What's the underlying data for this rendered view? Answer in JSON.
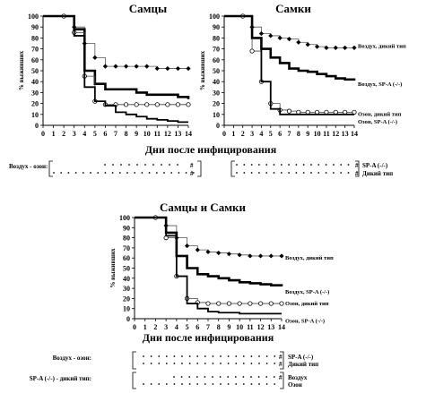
{
  "charts": [
    {
      "id": "males",
      "title": "Самцы",
      "ylabel": "% выживших",
      "xlim": [
        0,
        14
      ],
      "ylim": [
        0,
        100
      ],
      "xticks": [
        0,
        1,
        2,
        3,
        4,
        5,
        6,
        7,
        8,
        9,
        10,
        11,
        12,
        13,
        14
      ],
      "yticks": [
        0,
        10,
        20,
        30,
        40,
        50,
        60,
        70,
        80,
        90,
        100
      ],
      "series": [
        {
          "key": "air_wt",
          "style": "thin-diamond",
          "label": "",
          "x": [
            0,
            2,
            3,
            4,
            5,
            6,
            7,
            8,
            9,
            10,
            11,
            12,
            13,
            14
          ],
          "y": [
            100,
            100,
            90,
            75,
            62,
            54,
            54,
            54,
            54,
            54,
            52,
            52,
            52,
            52
          ]
        },
        {
          "key": "air_ko",
          "style": "thick",
          "label": "",
          "x": [
            0,
            2,
            3,
            4,
            5,
            6,
            7,
            8,
            9,
            10,
            11,
            12,
            13,
            14
          ],
          "y": [
            100,
            100,
            88,
            50,
            38,
            33,
            33,
            33,
            30,
            28,
            28,
            28,
            26,
            24
          ]
        },
        {
          "key": "oz_wt",
          "style": "thin-circle",
          "label": "",
          "x": [
            0,
            2,
            3,
            4,
            5,
            6,
            7,
            8,
            9,
            10,
            11,
            12,
            13,
            14
          ],
          "y": [
            100,
            100,
            85,
            45,
            22,
            19,
            19,
            19,
            19,
            19,
            19,
            19,
            19,
            19
          ]
        },
        {
          "key": "oz_ko",
          "style": "med",
          "label": "",
          "x": [
            0,
            2,
            3,
            4,
            5,
            6,
            7,
            8,
            9,
            10,
            11,
            12,
            13,
            14
          ],
          "y": [
            100,
            100,
            82,
            35,
            22,
            18,
            12,
            10,
            8,
            6,
            5,
            4,
            3,
            3
          ]
        }
      ]
    },
    {
      "id": "females",
      "title": "Самки",
      "ylabel": "% выживших",
      "xlim": [
        0,
        14
      ],
      "ylim": [
        0,
        100
      ],
      "xticks": [
        0,
        1,
        2,
        3,
        4,
        5,
        6,
        7,
        8,
        9,
        10,
        11,
        12,
        13,
        14
      ],
      "yticks": [
        0,
        10,
        20,
        30,
        40,
        50,
        60,
        70,
        80,
        90,
        100
      ],
      "series": [
        {
          "key": "air_wt",
          "style": "thin-diamond",
          "label": "Воздух, дикий тип",
          "x": [
            0,
            2,
            3,
            4,
            5,
            6,
            7,
            8,
            9,
            10,
            11,
            12,
            13,
            14
          ],
          "y": [
            100,
            100,
            90,
            84,
            82,
            80,
            79,
            76,
            74,
            72,
            71,
            71,
            71,
            71
          ]
        },
        {
          "key": "air_ko",
          "style": "thick",
          "label": "Воздух, SP-A (-/-)",
          "x": [
            0,
            2,
            3,
            4,
            5,
            6,
            7,
            8,
            9,
            10,
            11,
            12,
            13,
            14
          ],
          "y": [
            100,
            100,
            80,
            70,
            62,
            57,
            52,
            50,
            49,
            47,
            45,
            43,
            42,
            41
          ]
        },
        {
          "key": "oz_wt",
          "style": "thin-circle",
          "label": "Озон, дикий тип",
          "x": [
            0,
            2,
            3,
            4,
            5,
            6,
            7,
            8,
            9,
            10,
            11,
            12,
            13,
            14
          ],
          "y": [
            100,
            100,
            68,
            40,
            20,
            14,
            13,
            12,
            12,
            12,
            12,
            12,
            12,
            12
          ]
        },
        {
          "key": "oz_ko",
          "style": "med",
          "label": "Озон, SP-A (-/-)",
          "x": [
            0,
            2,
            3,
            4,
            5,
            6,
            7,
            8,
            9,
            10,
            11,
            12,
            13,
            14
          ],
          "y": [
            100,
            100,
            80,
            40,
            15,
            10,
            10,
            10,
            10,
            10,
            10,
            10,
            10,
            10
          ]
        }
      ]
    },
    {
      "id": "both",
      "title": "Самцы и Самки",
      "ylabel": "% выживших",
      "xlabel": "Дни после инфицирования",
      "xlim": [
        0,
        14
      ],
      "ylim": [
        0,
        100
      ],
      "xticks": [
        0,
        1,
        2,
        3,
        4,
        5,
        6,
        7,
        8,
        9,
        10,
        11,
        12,
        13,
        14
      ],
      "yticks": [
        0,
        10,
        20,
        30,
        40,
        50,
        60,
        70,
        80,
        90,
        100
      ],
      "series": [
        {
          "key": "air_wt",
          "style": "thin-diamond",
          "label": "Воздух, дикий тип",
          "x": [
            0,
            2,
            3,
            4,
            5,
            6,
            7,
            8,
            9,
            10,
            11,
            12,
            13,
            14
          ],
          "y": [
            100,
            100,
            92,
            80,
            72,
            68,
            66,
            65,
            64,
            63,
            62,
            62,
            62,
            62
          ]
        },
        {
          "key": "air_ko",
          "style": "thick",
          "label": "Воздух, SP-A (-/-)",
          "x": [
            0,
            2,
            3,
            4,
            5,
            6,
            7,
            8,
            9,
            10,
            11,
            12,
            13,
            14
          ],
          "y": [
            100,
            100,
            85,
            62,
            50,
            44,
            42,
            40,
            38,
            36,
            35,
            34,
            33,
            32
          ]
        },
        {
          "key": "oz_wt",
          "style": "thin-circle",
          "label": "Озон, дикий тип",
          "x": [
            0,
            2,
            3,
            4,
            5,
            6,
            7,
            8,
            9,
            10,
            11,
            12,
            13,
            14
          ],
          "y": [
            100,
            100,
            80,
            42,
            20,
            16,
            15,
            15,
            15,
            15,
            15,
            15,
            15,
            15
          ]
        },
        {
          "key": "oz_ko",
          "style": "med",
          "label": "Озон, SP-A (-/-)",
          "x": [
            0,
            2,
            3,
            4,
            5,
            6,
            7,
            8,
            9,
            10,
            11,
            12,
            13,
            14
          ],
          "y": [
            100,
            100,
            82,
            42,
            15,
            10,
            7,
            6,
            6,
            5,
            5,
            5,
            5,
            5
          ]
        }
      ]
    }
  ],
  "top_xlabel": "Дни после инфицирования",
  "sig_row_left_label": "Воздух - озон:",
  "sig_row_right_labels": [
    "SP-A (-/-)",
    "Дикий тип"
  ],
  "sig_rows_bottom": [
    {
      "label": "Воздух - озон:",
      "right": [
        "SP-A (-/-)",
        "Дикий тип"
      ]
    },
    {
      "label": "SP-A (-/-) - дикий тип:",
      "right": [
        "Воздух",
        "Озон"
      ]
    }
  ],
  "hash_mark": "#"
}
